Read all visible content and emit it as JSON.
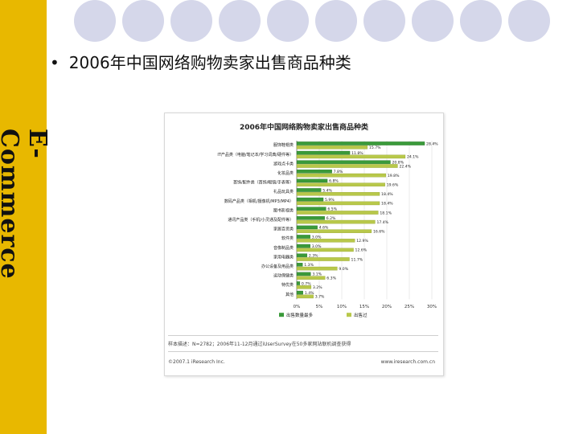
{
  "sidebar": {
    "label": "E-Commerce",
    "color": "#e8b800"
  },
  "slide": {
    "bullet": "•",
    "title": "2006年中国网络购物卖家出售商品种类"
  },
  "chart_data": {
    "type": "bar",
    "title": "2006年中国网络购物卖家出售商品种类",
    "categories": [
      "服饰鞋帽类",
      "IT产品类（电脑/笔记本/学习词典/硬件等）",
      "游戏点卡类",
      "化妆品类",
      "首饰/配件类（首饰/眼镜/手表等）",
      "礼品玩具类",
      "数码产品类（相机/摄像机/MP3/MP4）",
      "图书影视类",
      "通讯产品类（手机/小灵通及配件等）",
      "家居百货类",
      "软件类",
      "音像制品类",
      "家用电器类",
      "办公设备及用品类",
      "运动保健类",
      "特优类",
      "其他"
    ],
    "series": [
      {
        "name": "出售数量最多",
        "color": "#3a9a3a",
        "values": [
          28.4,
          11.8,
          20.8,
          7.8,
          6.8,
          5.4,
          5.9,
          6.5,
          6.2,
          4.6,
          3.0,
          3.0,
          2.3,
          1.3,
          3.1,
          0.7,
          1.4
        ]
      },
      {
        "name": "出售过",
        "color": "#b8c84a",
        "values": [
          15.7,
          24.1,
          22.4,
          19.8,
          19.6,
          18.4,
          18.4,
          18.1,
          17.4,
          16.6,
          12.9,
          12.6,
          11.7,
          9.0,
          6.3,
          3.2,
          3.7
        ]
      }
    ],
    "value_labels": {
      "出售数量最多": [
        "28.4%",
        "11.8%",
        "20.8%",
        "7.8%",
        "6.8%",
        "5.4%",
        "5.9%",
        "6.5%",
        "6.2%",
        "4.6%",
        "3.0%",
        "3.0%",
        "2.3%",
        "1.3%",
        "3.1%",
        "0.7%",
        "1.4%"
      ],
      "出售过": [
        "15.7%",
        "24.1%",
        "22.4%",
        "19.8%",
        "19.6%",
        "18.4%",
        "18.4%",
        "18.1%",
        "17.4%",
        "16.6%",
        "12.9%",
        "12.6%",
        "11.7%",
        "9.0%",
        "6.3%",
        "3.2%",
        "3.7%"
      ]
    },
    "x_ticks": [
      "0%",
      "5%",
      "10%",
      "15%",
      "20%",
      "25%",
      "30%"
    ],
    "xlim": [
      0,
      30
    ],
    "legend_position": "bottom",
    "source_note": "样本描述：N=2782；2006年11-12月通过iUserSurvey在50多家网站联机调查获得",
    "copyright": "©2007.1 iResearch Inc.",
    "website": "www.iresearch.com.cn"
  }
}
